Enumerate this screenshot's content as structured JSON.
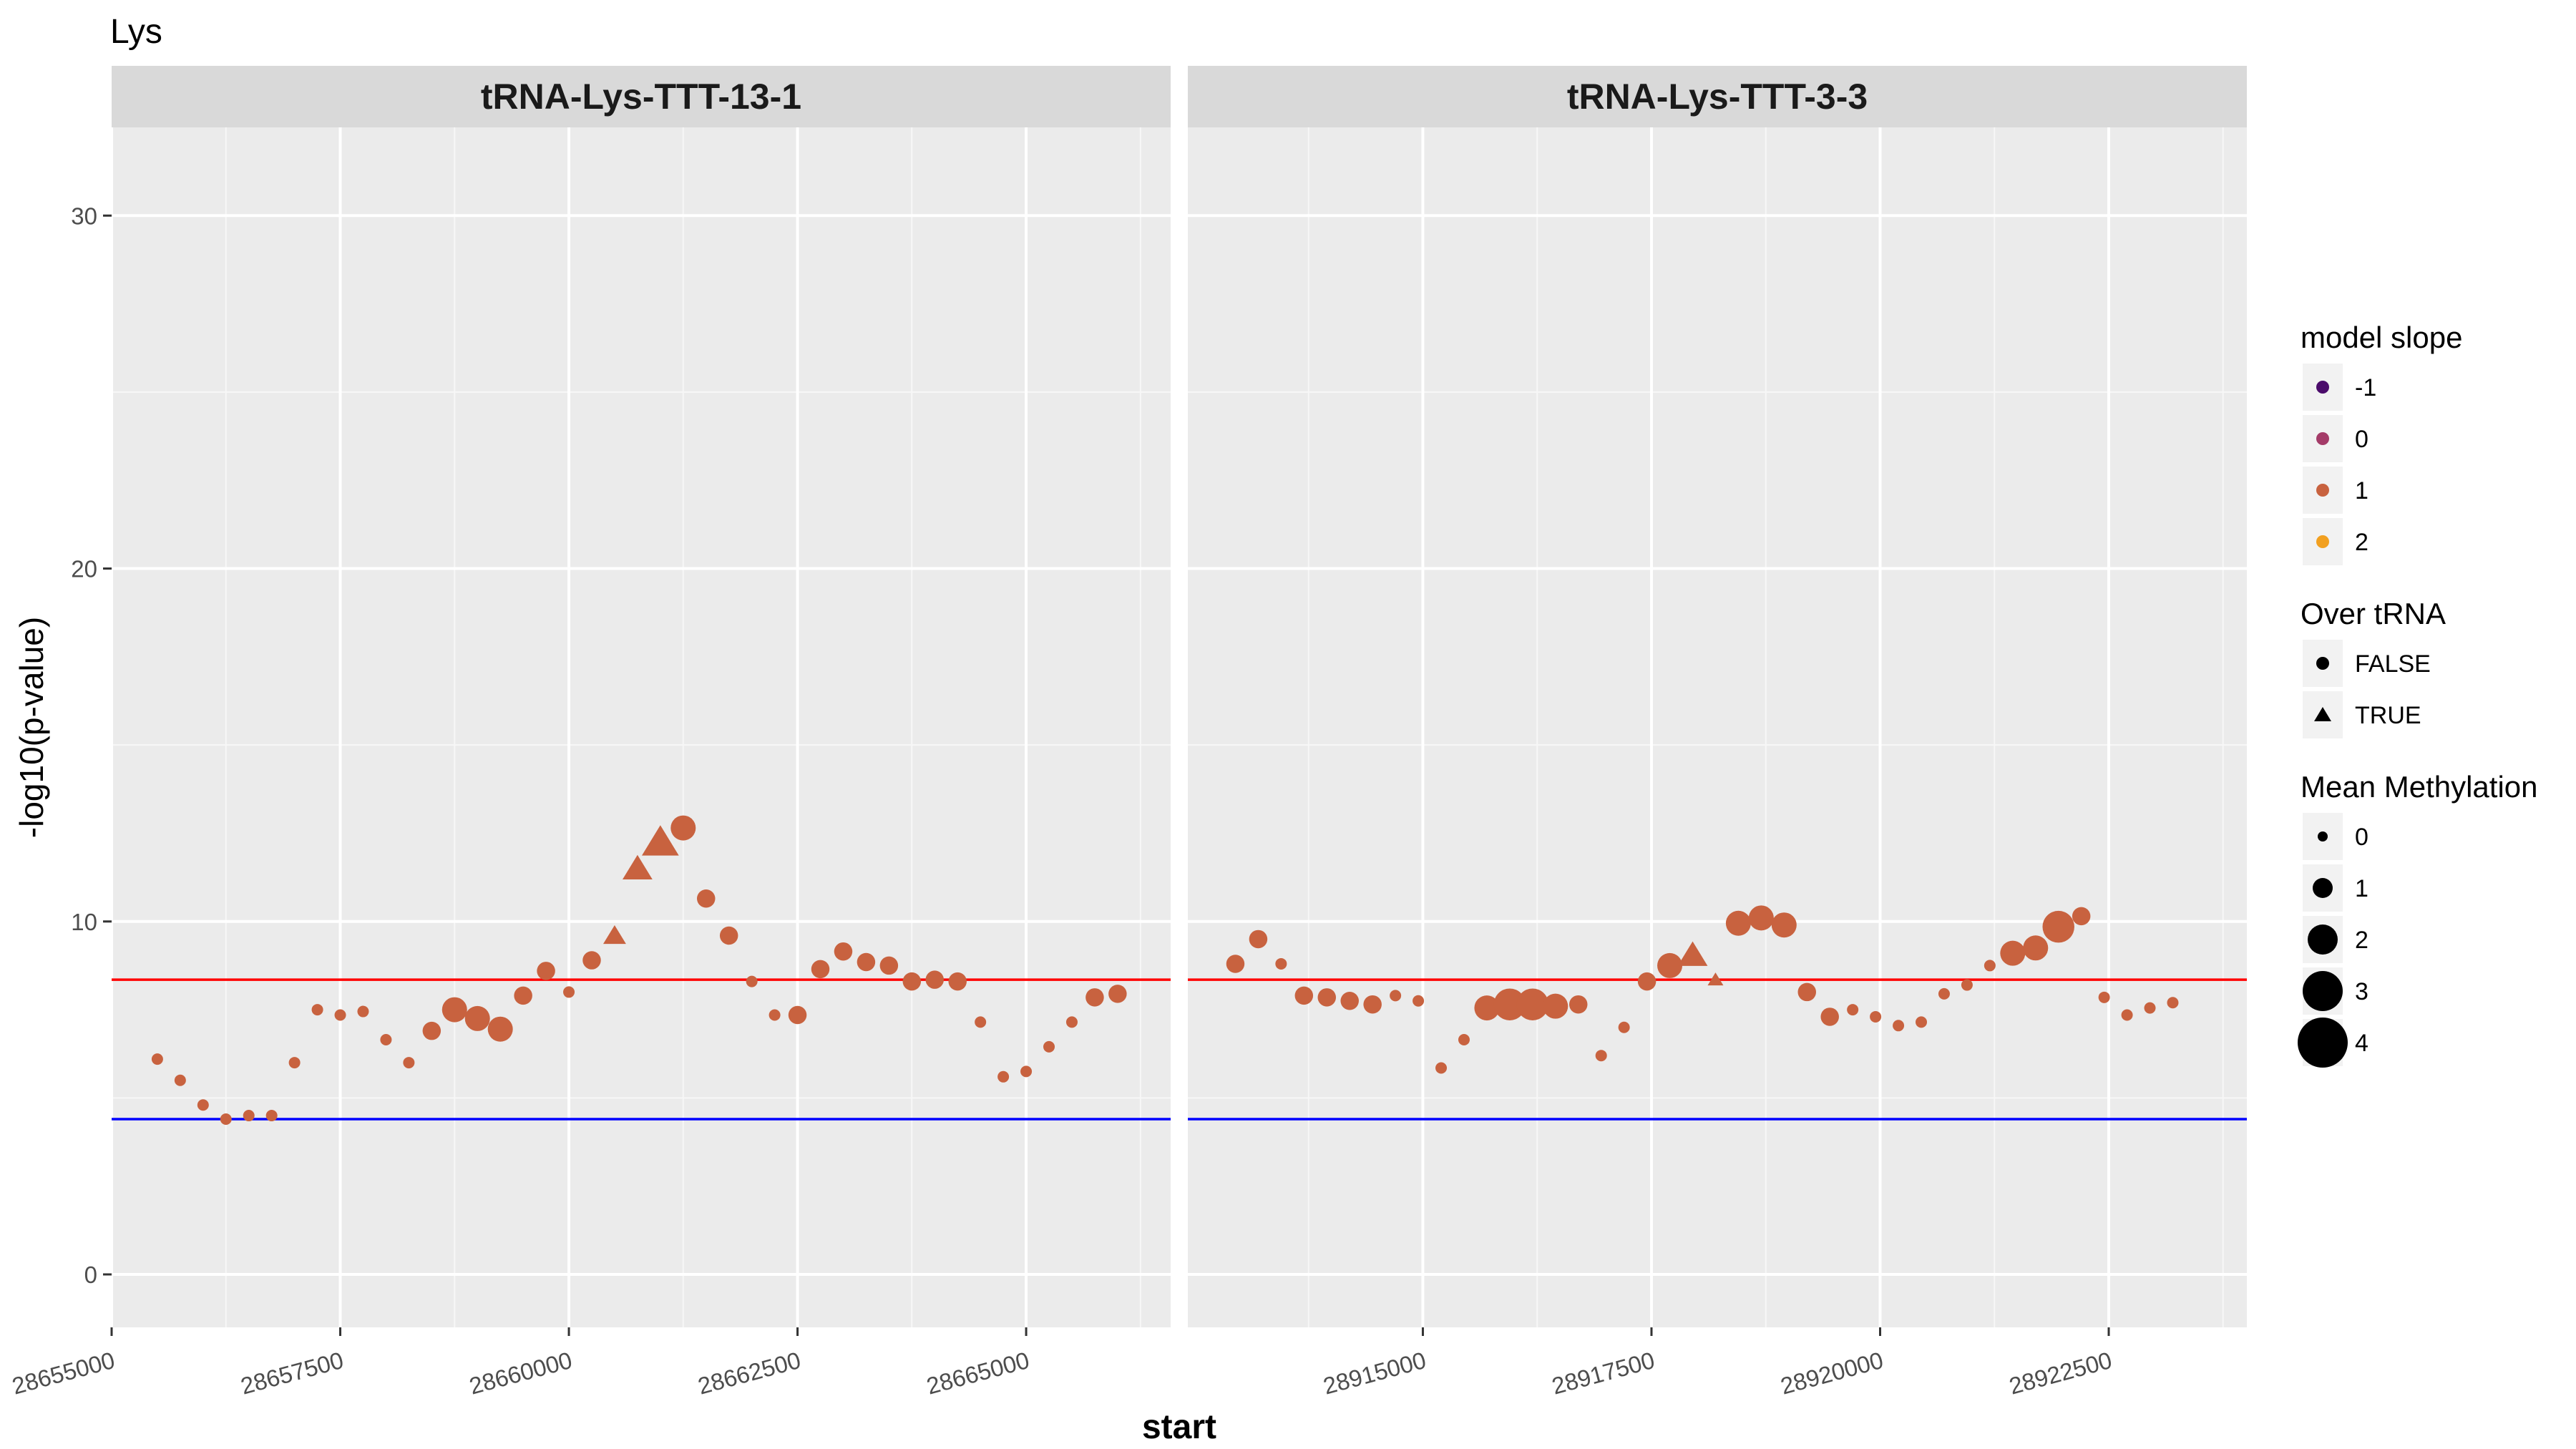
{
  "chart_data": {
    "type": "scatter",
    "title": "Lys",
    "xlabel": "start",
    "ylabel": "-log10(p-value)",
    "ylim": [
      -1.5,
      32.5
    ],
    "y_ticks": [
      0,
      10,
      20,
      30
    ],
    "grid": true,
    "hlines": [
      {
        "name": "upper",
        "y": 8.35,
        "color": "#ff0000"
      },
      {
        "name": "lower",
        "y": 4.4,
        "color": "#0000ff"
      }
    ],
    "panels": [
      {
        "title": "tRNA-Lys-TTT-13-1",
        "xlim": [
          28655000,
          28666580
        ],
        "x_ticks": [
          28655000,
          28657500,
          28660000,
          28662500,
          28665000
        ],
        "x_tick_labels": [
          "28655000",
          "28657500",
          "28660000",
          "28662500",
          "28665000"
        ],
        "points": [
          {
            "x": 28655500,
            "y": 6.1,
            "shape": "circle",
            "size": 0,
            "slope": 1
          },
          {
            "x": 28655750,
            "y": 5.5,
            "shape": "circle",
            "size": 0,
            "slope": 1
          },
          {
            "x": 28656000,
            "y": 4.8,
            "shape": "circle",
            "size": 0,
            "slope": 1
          },
          {
            "x": 28656250,
            "y": 4.4,
            "shape": "circle",
            "size": 0,
            "slope": 1
          },
          {
            "x": 28656500,
            "y": 4.5,
            "shape": "circle",
            "size": 0,
            "slope": 1
          },
          {
            "x": 28656750,
            "y": 4.5,
            "shape": "circle",
            "size": 0,
            "slope": 1
          },
          {
            "x": 28657000,
            "y": 6.0,
            "shape": "circle",
            "size": 0,
            "slope": 1
          },
          {
            "x": 28657250,
            "y": 7.5,
            "shape": "circle",
            "size": 0,
            "slope": 1
          },
          {
            "x": 28657500,
            "y": 7.35,
            "shape": "circle",
            "size": 0,
            "slope": 1
          },
          {
            "x": 28657750,
            "y": 7.45,
            "shape": "circle",
            "size": 0,
            "slope": 1
          },
          {
            "x": 28658000,
            "y": 6.65,
            "shape": "circle",
            "size": 0,
            "slope": 1
          },
          {
            "x": 28658250,
            "y": 6.0,
            "shape": "circle",
            "size": 0,
            "slope": 1
          },
          {
            "x": 28658500,
            "y": 6.9,
            "shape": "circle",
            "size": 0.5,
            "slope": 1
          },
          {
            "x": 28658750,
            "y": 7.5,
            "shape": "circle",
            "size": 1,
            "slope": 1
          },
          {
            "x": 28659000,
            "y": 7.25,
            "shape": "circle",
            "size": 1,
            "slope": 1
          },
          {
            "x": 28659250,
            "y": 6.95,
            "shape": "circle",
            "size": 1,
            "slope": 1
          },
          {
            "x": 28659500,
            "y": 7.9,
            "shape": "circle",
            "size": 0.5,
            "slope": 1
          },
          {
            "x": 28659750,
            "y": 8.6,
            "shape": "circle",
            "size": 0.5,
            "slope": 1
          },
          {
            "x": 28660000,
            "y": 8.0,
            "shape": "circle",
            "size": 0,
            "slope": 1
          },
          {
            "x": 28660250,
            "y": 8.9,
            "shape": "circle",
            "size": 0.5,
            "slope": 1
          },
          {
            "x": 28660500,
            "y": 9.6,
            "shape": "triangle",
            "size": 0.5,
            "slope": 1
          },
          {
            "x": 28660750,
            "y": 11.5,
            "shape": "triangle",
            "size": 1,
            "slope": 1
          },
          {
            "x": 28661000,
            "y": 12.25,
            "shape": "triangle",
            "size": 1.5,
            "slope": 1
          },
          {
            "x": 28661250,
            "y": 12.65,
            "shape": "circle",
            "size": 1,
            "slope": 1
          },
          {
            "x": 28661500,
            "y": 10.65,
            "shape": "circle",
            "size": 0.5,
            "slope": 1
          },
          {
            "x": 28661750,
            "y": 9.6,
            "shape": "circle",
            "size": 0.5,
            "slope": 1
          },
          {
            "x": 28662000,
            "y": 8.3,
            "shape": "circle",
            "size": 0,
            "slope": 1
          },
          {
            "x": 28662250,
            "y": 7.35,
            "shape": "circle",
            "size": 0,
            "slope": 1
          },
          {
            "x": 28662500,
            "y": 7.35,
            "shape": "circle",
            "size": 0.5,
            "slope": 1
          },
          {
            "x": 28662750,
            "y": 8.65,
            "shape": "circle",
            "size": 0.5,
            "slope": 1
          },
          {
            "x": 28663000,
            "y": 9.15,
            "shape": "circle",
            "size": 0.5,
            "slope": 1
          },
          {
            "x": 28663250,
            "y": 8.85,
            "shape": "circle",
            "size": 0.5,
            "slope": 1
          },
          {
            "x": 28663500,
            "y": 8.75,
            "shape": "circle",
            "size": 0.5,
            "slope": 1
          },
          {
            "x": 28663750,
            "y": 8.3,
            "shape": "circle",
            "size": 0.5,
            "slope": 1
          },
          {
            "x": 28664000,
            "y": 8.35,
            "shape": "circle",
            "size": 0.5,
            "slope": 1
          },
          {
            "x": 28664250,
            "y": 8.3,
            "shape": "circle",
            "size": 0.5,
            "slope": 1
          },
          {
            "x": 28664500,
            "y": 7.15,
            "shape": "circle",
            "size": 0,
            "slope": 1
          },
          {
            "x": 28664750,
            "y": 5.6,
            "shape": "circle",
            "size": 0,
            "slope": 1
          },
          {
            "x": 28665000,
            "y": 5.75,
            "shape": "circle",
            "size": 0,
            "slope": 1
          },
          {
            "x": 28665250,
            "y": 6.45,
            "shape": "circle",
            "size": 0,
            "slope": 1
          },
          {
            "x": 28665500,
            "y": 7.15,
            "shape": "circle",
            "size": 0,
            "slope": 1
          },
          {
            "x": 28665750,
            "y": 7.85,
            "shape": "circle",
            "size": 0.5,
            "slope": 1
          },
          {
            "x": 28666000,
            "y": 7.95,
            "shape": "circle",
            "size": 0.5,
            "slope": 1
          }
        ]
      },
      {
        "title": "tRNA-Lys-TTT-3-3",
        "xlim": [
          28912430,
          28924010
        ],
        "x_ticks": [
          28915000,
          28917500,
          28920000,
          28922500
        ],
        "x_tick_labels": [
          "28915000",
          "28917500",
          "28920000",
          "28922500"
        ],
        "points": [
          {
            "x": 28912950,
            "y": 8.8,
            "shape": "circle",
            "size": 0.5,
            "slope": 1
          },
          {
            "x": 28913200,
            "y": 9.5,
            "shape": "circle",
            "size": 0.5,
            "slope": 1
          },
          {
            "x": 28913450,
            "y": 8.8,
            "shape": "circle",
            "size": 0,
            "slope": 1
          },
          {
            "x": 28913700,
            "y": 7.9,
            "shape": "circle",
            "size": 0.5,
            "slope": 1
          },
          {
            "x": 28913950,
            "y": 7.85,
            "shape": "circle",
            "size": 0.5,
            "slope": 1
          },
          {
            "x": 28914200,
            "y": 7.75,
            "shape": "circle",
            "size": 0.5,
            "slope": 1
          },
          {
            "x": 28914450,
            "y": 7.65,
            "shape": "circle",
            "size": 0.5,
            "slope": 1
          },
          {
            "x": 28914700,
            "y": 7.9,
            "shape": "circle",
            "size": 0,
            "slope": 1
          },
          {
            "x": 28914950,
            "y": 7.75,
            "shape": "circle",
            "size": 0,
            "slope": 1
          },
          {
            "x": 28915200,
            "y": 5.85,
            "shape": "circle",
            "size": 0,
            "slope": 1
          },
          {
            "x": 28915450,
            "y": 6.65,
            "shape": "circle",
            "size": 0,
            "slope": 1
          },
          {
            "x": 28915700,
            "y": 7.55,
            "shape": "circle",
            "size": 1,
            "slope": 1
          },
          {
            "x": 28915950,
            "y": 7.65,
            "shape": "circle",
            "size": 1.5,
            "slope": 1
          },
          {
            "x": 28916200,
            "y": 7.65,
            "shape": "circle",
            "size": 1.5,
            "slope": 1
          },
          {
            "x": 28916450,
            "y": 7.6,
            "shape": "circle",
            "size": 1,
            "slope": 1
          },
          {
            "x": 28916700,
            "y": 7.65,
            "shape": "circle",
            "size": 0.5,
            "slope": 1
          },
          {
            "x": 28916950,
            "y": 6.2,
            "shape": "circle",
            "size": 0,
            "slope": 1
          },
          {
            "x": 28917200,
            "y": 7.0,
            "shape": "circle",
            "size": 0,
            "slope": 1
          },
          {
            "x": 28917450,
            "y": 8.3,
            "shape": "circle",
            "size": 0.5,
            "slope": 1
          },
          {
            "x": 28917700,
            "y": 8.75,
            "shape": "circle",
            "size": 1,
            "slope": 1
          },
          {
            "x": 28917950,
            "y": 9.05,
            "shape": "triangle",
            "size": 1,
            "slope": 1
          },
          {
            "x": 28918200,
            "y": 8.35,
            "shape": "triangle",
            "size": 0,
            "slope": 1
          },
          {
            "x": 28918450,
            "y": 9.95,
            "shape": "circle",
            "size": 1,
            "slope": 1
          },
          {
            "x": 28918700,
            "y": 10.1,
            "shape": "circle",
            "size": 1,
            "slope": 1
          },
          {
            "x": 28918950,
            "y": 9.9,
            "shape": "circle",
            "size": 1,
            "slope": 1
          },
          {
            "x": 28919200,
            "y": 8.0,
            "shape": "circle",
            "size": 0.5,
            "slope": 1
          },
          {
            "x": 28919450,
            "y": 7.3,
            "shape": "circle",
            "size": 0.5,
            "slope": 1
          },
          {
            "x": 28919700,
            "y": 7.5,
            "shape": "circle",
            "size": 0,
            "slope": 1
          },
          {
            "x": 28919950,
            "y": 7.3,
            "shape": "circle",
            "size": 0,
            "slope": 1
          },
          {
            "x": 28920200,
            "y": 7.05,
            "shape": "circle",
            "size": 0,
            "slope": 1
          },
          {
            "x": 28920450,
            "y": 7.15,
            "shape": "circle",
            "size": 0,
            "slope": 1
          },
          {
            "x": 28920700,
            "y": 7.95,
            "shape": "circle",
            "size": 0,
            "slope": 1
          },
          {
            "x": 28920950,
            "y": 8.2,
            "shape": "circle",
            "size": 0,
            "slope": 1
          },
          {
            "x": 28921200,
            "y": 8.75,
            "shape": "circle",
            "size": 0,
            "slope": 1
          },
          {
            "x": 28921450,
            "y": 9.1,
            "shape": "circle",
            "size": 1,
            "slope": 1
          },
          {
            "x": 28921700,
            "y": 9.25,
            "shape": "circle",
            "size": 1,
            "slope": 1
          },
          {
            "x": 28921950,
            "y": 9.85,
            "shape": "circle",
            "size": 1.5,
            "slope": 1
          },
          {
            "x": 28922200,
            "y": 10.15,
            "shape": "circle",
            "size": 0.5,
            "slope": 1
          },
          {
            "x": 28922450,
            "y": 7.85,
            "shape": "circle",
            "size": 0,
            "slope": 1
          },
          {
            "x": 28922700,
            "y": 7.35,
            "shape": "circle",
            "size": 0,
            "slope": 1
          },
          {
            "x": 28922950,
            "y": 7.55,
            "shape": "circle",
            "size": 0,
            "slope": 1
          },
          {
            "x": 28923200,
            "y": 7.7,
            "shape": "circle",
            "size": 0,
            "slope": 1
          }
        ]
      }
    ],
    "legends": [
      {
        "title": "model slope",
        "kind": "color",
        "entries": [
          {
            "label": "-1",
            "value": -1,
            "color": "#4b0c6b"
          },
          {
            "label": "0",
            "value": 0,
            "color": "#a43b68"
          },
          {
            "label": "1",
            "value": 1,
            "color": "#c8623f"
          },
          {
            "label": "2",
            "value": 2,
            "color": "#f2a020"
          }
        ]
      },
      {
        "title": "Over tRNA",
        "kind": "shape",
        "entries": [
          {
            "label": "FALSE",
            "shape": "circle"
          },
          {
            "label": "TRUE",
            "shape": "triangle"
          }
        ]
      },
      {
        "title": "Mean Methylation",
        "kind": "size",
        "entries": [
          {
            "label": "0",
            "value": 0
          },
          {
            "label": "1",
            "value": 1
          },
          {
            "label": "2",
            "value": 2
          },
          {
            "label": "3",
            "value": 3
          },
          {
            "label": "4",
            "value": 4
          }
        ]
      }
    ]
  }
}
